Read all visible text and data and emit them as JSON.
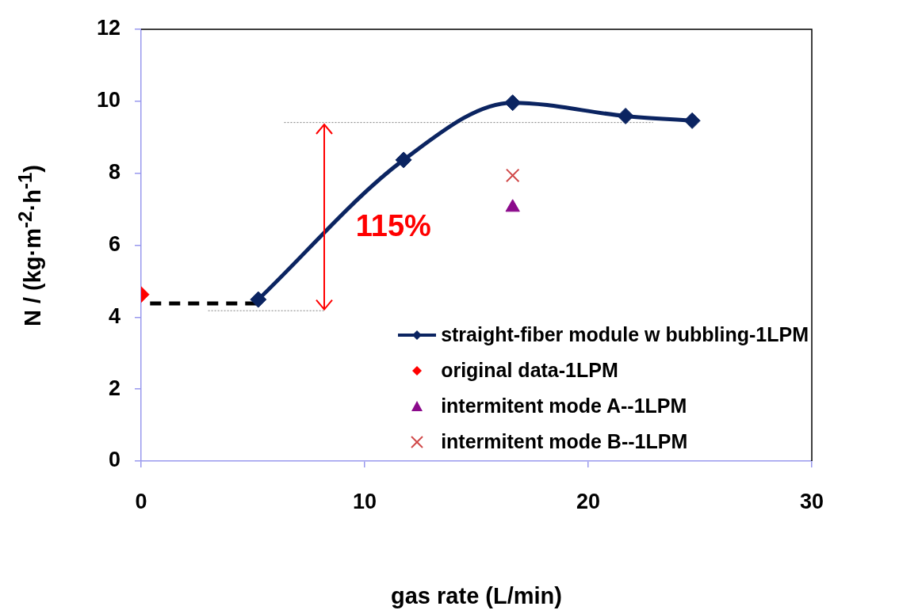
{
  "chart_data": {
    "type": "line",
    "xlabel": "gas rate (L/min)",
    "ylabel": "N / (kg·m$^{-2}$·h$^{-1}$)",
    "xlim": [
      0,
      30
    ],
    "xticks": [
      0,
      10,
      20,
      30
    ],
    "ylim": [
      0,
      12
    ],
    "yticks": [
      0,
      2,
      4,
      6,
      8,
      10,
      12
    ],
    "grid": false,
    "legend": "bottom right",
    "annotations": [
      "115%"
    ],
    "series": [
      {
        "name": "straight-fiber module w bubbling-1LPM",
        "color": "#0b2461",
        "marker": "diamond",
        "line_style": "solid",
        "x": [
          5.24,
          11.74,
          16.62,
          21.67,
          24.65
        ],
        "values": [
          4.49,
          8.37,
          9.96,
          9.59,
          9.46
        ]
      },
      {
        "name": "original data-1LPM",
        "type": "scatter",
        "color": "#ff0000",
        "marker": "diamond",
        "x": [
          0
        ],
        "values": [
          4.63
        ]
      },
      {
        "name": "intermitent mode A--1LPM",
        "type": "scatter",
        "color": "#8b0a8b",
        "marker": "triangle",
        "x": [
          16.62
        ],
        "values": [
          7.05
        ]
      },
      {
        "name": "intermitent mode B--1LPM",
        "type": "scatter",
        "color": "#d04848",
        "marker": "cross",
        "x": [
          16.62
        ],
        "values": [
          7.94
        ]
      },
      {
        "color": "#000000",
        "marker": "none",
        "line_style": "dashed",
        "x": [
          0.4,
          5.2
        ],
        "values": [
          4.38,
          4.38
        ]
      },
      {
        "color": "#808080",
        "marker": "none",
        "line_style": "dotted",
        "x": [
          3.0,
          8.2
        ],
        "values": [
          4.18,
          4.18
        ]
      },
      {
        "color": "#808080",
        "marker": "none",
        "line_style": "dotted",
        "x": [
          6.4,
          22.9
        ],
        "values": [
          9.41,
          9.41
        ]
      }
    ]
  }
}
